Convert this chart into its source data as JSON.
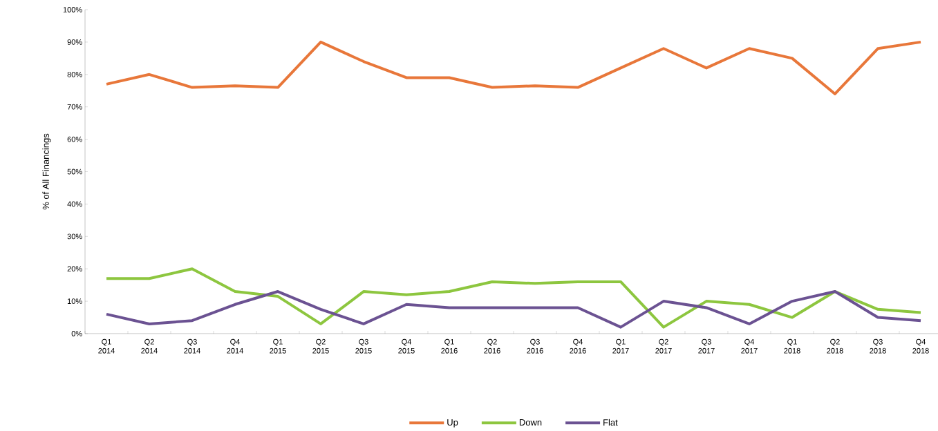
{
  "chart_data": {
    "type": "line",
    "ylabel": "% of All Financings",
    "categories": [
      "Q1 2014",
      "Q2 2014",
      "Q3 2014",
      "Q4 2014",
      "Q1 2015",
      "Q2 2015",
      "Q3 2015",
      "Q4 2015",
      "Q1 2016",
      "Q2 2016",
      "Q3 2016",
      "Q4 2016",
      "Q1 2017",
      "Q2 2017",
      "Q3 2017",
      "Q4 2017",
      "Q1 2018",
      "Q2 2018",
      "Q3 2018",
      "Q4 2018"
    ],
    "series": [
      {
        "name": "Up",
        "color": "#e8773a",
        "values": [
          77,
          80,
          76,
          76.5,
          76,
          90,
          84,
          79,
          79,
          76,
          76.5,
          76,
          82,
          88,
          82,
          88,
          85,
          74,
          88,
          90
        ]
      },
      {
        "name": "Down",
        "color": "#8dc63f",
        "values": [
          17,
          17,
          20,
          13,
          11.5,
          3,
          13,
          12,
          13,
          16,
          15.5,
          16,
          16,
          2,
          10,
          9,
          5,
          13,
          7.5,
          6.5
        ]
      },
      {
        "name": "Flat",
        "color": "#6b5292",
        "values": [
          6,
          3,
          4,
          9,
          13,
          7.5,
          3,
          9,
          8,
          8,
          8,
          8,
          2,
          10,
          8,
          3,
          10,
          13,
          5,
          4
        ]
      }
    ],
    "ylim": [
      0,
      100
    ],
    "yticks": [
      {
        "value": 0,
        "label": "0%"
      },
      {
        "value": 10,
        "label": "10%"
      },
      {
        "value": 20,
        "label": "20%"
      },
      {
        "value": 30,
        "label": "30%"
      },
      {
        "value": 40,
        "label": "40%"
      },
      {
        "value": 50,
        "label": "50%"
      },
      {
        "value": 60,
        "label": "60%"
      },
      {
        "value": 70,
        "label": "70%"
      },
      {
        "value": 80,
        "label": "80%"
      },
      {
        "value": 90,
        "label": "90%"
      },
      {
        "value": 100,
        "label": "100%"
      }
    ],
    "grid": false,
    "legend": "bottom",
    "line_style": "solid"
  }
}
